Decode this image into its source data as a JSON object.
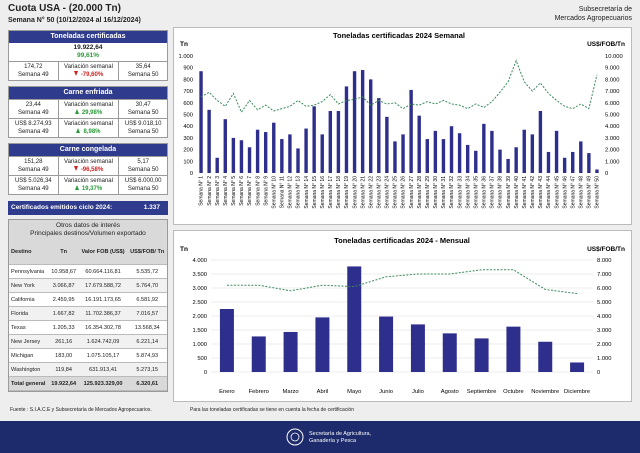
{
  "header": {
    "title": "Cuota USA - (20.000 Tn)",
    "subtitle": "Semana N° 50 (10/12/2024 al 16/12/2024)",
    "org": [
      "Subsecretaría de",
      "Mercados Agropecuarios"
    ]
  },
  "sections": [
    {
      "title": "Toneladas certificadas",
      "total": "19.922,64",
      "percent": "99,61%",
      "rows": [
        {
          "prev": "174,72",
          "prev_label": "Semana 49",
          "change_label": "Variación semanal",
          "change": "-79,60%",
          "curr": "35,64",
          "curr_label": "Semana 50"
        }
      ]
    },
    {
      "title": "Carne enfriada",
      "rows": [
        {
          "prev": "23,44",
          "prev_label": "Semana 49",
          "change_label": "Variación semanal",
          "change": "29,98%",
          "curr": "30,47",
          "curr_label": "Semana 50"
        },
        {
          "prev": "US$ 8.274,93",
          "prev_label": "Semana 49",
          "change_label": "Variación semanal",
          "change": "8,98%",
          "curr": "US$ 9.018,10",
          "curr_label": "Semana 50"
        }
      ]
    },
    {
      "title": "Carne congelada",
      "rows": [
        {
          "prev": "151,28",
          "prev_label": "Semana 49",
          "change_label": "Variación semanal",
          "change": "-96,58%",
          "curr": "5,17",
          "curr_label": "Semana 50"
        },
        {
          "prev": "US$ 5.026,34",
          "prev_label": "Semana 49",
          "change_label": "Variación semanal",
          "change": "19,37%",
          "curr": "US$ 6.000,00",
          "curr_label": "Semana 50"
        }
      ]
    }
  ],
  "certificates": {
    "label": "Certificados emitidos  ciclo 2024:",
    "value": "1.337"
  },
  "table": {
    "title": [
      "Otros datos de interés",
      "Principales destinos/Volumen exportado"
    ],
    "columns": [
      "Destino",
      "Tn",
      "Valor FOB (US$)",
      "US$/FOB/ Tn"
    ],
    "rows": [
      [
        "Pennsylvania",
        "10.958,67",
        "60.664.116,81",
        "5.535,72"
      ],
      [
        "New York",
        "3.066,87",
        "17.679.588,72",
        "5.764,70"
      ],
      [
        "California",
        "2.459,95",
        "16.191.173,65",
        "6.581,92"
      ],
      [
        "Florida",
        "1.667,82",
        "11.702.386,37",
        "7.016,57"
      ],
      [
        "Texas",
        "1.205,33",
        "16.354.302,78",
        "13.568,34"
      ],
      [
        "New Jersey",
        "261,16",
        "1.624.742,09",
        "6.221,14"
      ],
      [
        "Michigan",
        "183,00",
        "1.075.105,17",
        "5.874,93"
      ],
      [
        "Washington",
        "119,84",
        "631.913,41",
        "5.273,15"
      ]
    ],
    "total": [
      "Total general",
      "19.922,64",
      "125.923.329,00",
      "6.320,61"
    ]
  },
  "footer": {
    "source": "Fuente : S.I.A.C.E y Subsecretaría de Mercados Agropecuarios.",
    "note": "Para las toneladas certificadas se tiene en cuenta la fecha de certificación",
    "logo": [
      "Secretaría de Agricultura,",
      "Ganadería y Pesca"
    ]
  },
  "chart_data": [
    {
      "type": "bar",
      "title": "Toneladas certificadas 2024  Semanal",
      "y_label": "Tn",
      "y2_label": "US$/FOB/Tn",
      "grid": false,
      "categories": [
        "Semana N° 1",
        "Semana N° 2",
        "Semana N° 3",
        "Semana N° 4",
        "Semana N° 5",
        "Semana N° 6",
        "Semana N° 7",
        "Semana N° 8",
        "Semana N° 9",
        "Semana N° 10",
        "Semana N° 11",
        "Semana N° 12",
        "Semana N° 13",
        "Semana N° 14",
        "Semana N° 15",
        "Semana N° 16",
        "Semana N° 17",
        "Semana N° 18",
        "Semana N° 19",
        "Semana N° 20",
        "Semana N° 21",
        "Semana N° 22",
        "Semana N° 23",
        "Semana N° 24",
        "Semana N° 25",
        "Semana N° 26",
        "Semana N° 27",
        "Semana N° 28",
        "Semana N° 29",
        "Semana N° 30",
        "Semana N° 31",
        "Semana N° 32",
        "Semana N° 33",
        "Semana N° 34",
        "Semana N° 35",
        "Semana N° 36",
        "Semana N° 37",
        "Semana N° 38",
        "Semana N° 39",
        "Semana N° 40",
        "Semana N° 41",
        "Semana N° 42",
        "Semana N° 43",
        "Semana N° 44",
        "Semana N° 45",
        "Semana N° 46",
        "Semana N° 47",
        "Semana N° 48",
        "Semana N° 49",
        "Semana N° 50"
      ],
      "series": [
        {
          "type": "bar",
          "color": "#2e2f8c",
          "values": [
            870,
            540,
            130,
            460,
            300,
            280,
            220,
            370,
            350,
            430,
            290,
            330,
            210,
            380,
            570,
            330,
            530,
            530,
            740,
            870,
            880,
            800,
            640,
            480,
            270,
            330,
            710,
            490,
            290,
            360,
            290,
            400,
            340,
            240,
            190,
            420,
            360,
            200,
            120,
            220,
            370,
            330,
            530,
            180,
            360,
            130,
            180,
            270,
            170,
            30
          ]
        },
        {
          "type": "line",
          "axis": "y2",
          "color": "#3a8a5a",
          "values": [
            6500,
            6900,
            6200,
            5700,
            6800,
            5200,
            6200,
            5400,
            5800,
            5300,
            5500,
            5700,
            6200,
            5700,
            5800,
            6100,
            6700,
            5900,
            6200,
            6300,
            6500,
            5800,
            6200,
            5900,
            6000,
            5500,
            5900,
            5800,
            6100,
            5900,
            6200,
            5900,
            5800,
            5500,
            5900,
            5600,
            6100,
            6900,
            7800,
            9600,
            7800,
            7000,
            7700,
            6800,
            6200,
            5700,
            5500,
            5900,
            5500,
            8400
          ]
        }
      ],
      "ylim": [
        0,
        1000
      ],
      "yticks": [
        0,
        100,
        200,
        300,
        400,
        500,
        600,
        700,
        800,
        900,
        {
          "value": 1000,
          "label": "1.000"
        }
      ],
      "y2lim": [
        0,
        10000
      ],
      "y2ticks": [
        0,
        {
          "value": 1000,
          "label": "1.000"
        },
        {
          "value": 2000,
          "label": "2.000"
        },
        {
          "value": 3000,
          "label": "3.000"
        },
        {
          "value": 4000,
          "label": "4.000"
        },
        {
          "value": 5000,
          "label": "5.000"
        },
        {
          "value": 6000,
          "label": "6.000"
        },
        {
          "value": 7000,
          "label": "7.000"
        },
        {
          "value": 8000,
          "label": "8.000"
        },
        {
          "value": 9000,
          "label": "9.000"
        },
        {
          "value": 10000,
          "label": "10.000"
        }
      ]
    },
    {
      "type": "bar",
      "title": "Toneladas certificadas 2024 - Mensual",
      "y_label": "Tn",
      "y2_label": "US$/FOB/Tn",
      "grid": true,
      "categories": [
        "Enero",
        "Febrero",
        "Marzo",
        "Abril",
        "Mayo",
        "Junio",
        "Julio",
        "Agosto",
        "Septiembre",
        "Octubre",
        "Noviembre",
        "Diciembre"
      ],
      "series": [
        {
          "type": "bar",
          "color": "#2e2f8c",
          "values": [
            2250,
            1270,
            1430,
            1950,
            3770,
            1980,
            1700,
            1380,
            1200,
            1620,
            1080,
            340
          ]
        },
        {
          "type": "line",
          "axis": "y2",
          "color": "#3a8a5a",
          "values": [
            6200,
            6200,
            5800,
            6200,
            6100,
            6800,
            7000,
            7000,
            7300,
            7300,
            5900,
            5600
          ]
        }
      ],
      "ylim": [
        0,
        4000
      ],
      "yticks": [
        0,
        500,
        {
          "value": 1000,
          "label": "1.000"
        },
        {
          "value": 1500,
          "label": "1.500"
        },
        {
          "value": 2000,
          "label": "2.000"
        },
        {
          "value": 2500,
          "label": "2.500"
        },
        {
          "value": 3000,
          "label": "3.000"
        },
        {
          "value": 3500,
          "label": "3.500"
        },
        {
          "value": 4000,
          "label": "4.000"
        }
      ],
      "y2lim": [
        0,
        8000
      ],
      "y2ticks": [
        0,
        {
          "value": 1000,
          "label": "1.000"
        },
        {
          "value": 2000,
          "label": "2.000"
        },
        {
          "value": 3000,
          "label": "3.000"
        },
        {
          "value": 4000,
          "label": "4.000"
        },
        {
          "value": 5000,
          "label": "5.000"
        },
        {
          "value": 6000,
          "label": "6.000"
        },
        {
          "value": 7000,
          "label": "7.000"
        },
        {
          "value": 8000,
          "label": "8.000"
        }
      ]
    }
  ]
}
